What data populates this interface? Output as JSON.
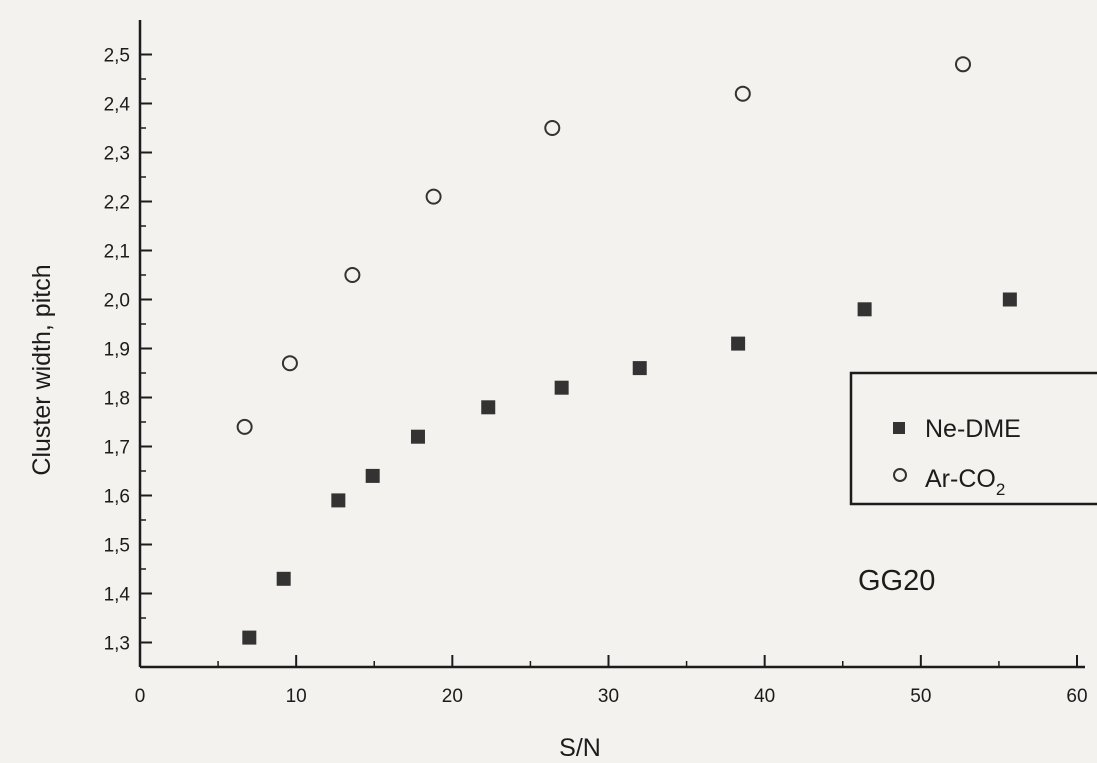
{
  "chart_data": {
    "type": "scatter",
    "xlabel": "S/N",
    "ylabel": "Cluster width, pitch",
    "xlim": [
      0,
      60
    ],
    "ylim": [
      1.25,
      2.55
    ],
    "x_ticks": [
      "0",
      "10",
      "20",
      "30",
      "40",
      "50",
      "60"
    ],
    "y_ticks": [
      "1,3",
      "1,4",
      "1,5",
      "1,6",
      "1,7",
      "1,8",
      "1,9",
      "2,0",
      "2,1",
      "2,2",
      "2,3",
      "2,4",
      "2,5"
    ],
    "legend_position": "right",
    "annotation": "GG20",
    "series": [
      {
        "name": "Ne-DME",
        "marker": "square",
        "color": "#333333",
        "x": [
          7.0,
          9.2,
          12.7,
          14.9,
          17.8,
          22.3,
          27.0,
          32.0,
          38.3,
          46.4,
          55.7
        ],
        "y": [
          1.31,
          1.43,
          1.59,
          1.64,
          1.72,
          1.78,
          1.82,
          1.86,
          1.91,
          1.98,
          2.0
        ]
      },
      {
        "name": "Ar-CO",
        "name_subscript": "2",
        "marker": "circle",
        "color": "#333333",
        "x": [
          6.7,
          9.6,
          13.6,
          18.8,
          26.4,
          38.6,
          52.7
        ],
        "y": [
          1.74,
          1.87,
          2.05,
          2.21,
          2.35,
          2.42,
          2.48
        ]
      }
    ]
  }
}
